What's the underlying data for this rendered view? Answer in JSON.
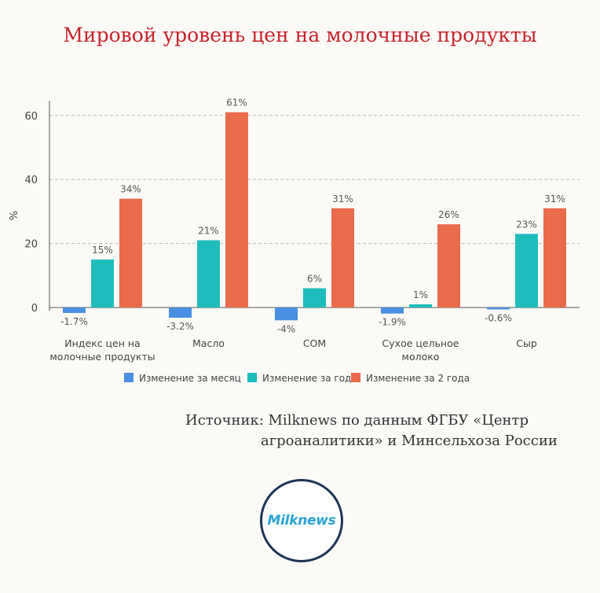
{
  "title": "Мировой уровень цен на молочные продукты",
  "source": {
    "line1": "Источник: Milknews по данным ФГБУ «Центр",
    "line2": "агроаналитики» и Минсельхоза России"
  },
  "logo_text": "Milknews",
  "chart_data": {
    "type": "bar",
    "ylabel": "%",
    "ylim": [
      -6,
      66
    ],
    "yticks": [
      0,
      20,
      40,
      60
    ],
    "grid": true,
    "legend_position": "bottom",
    "categories": [
      [
        "Индекс цен на",
        "молочные продукты"
      ],
      [
        "Масло"
      ],
      [
        "СОМ"
      ],
      [
        "Сухое цельное",
        "молоко"
      ],
      [
        "Сыр"
      ]
    ],
    "series": [
      {
        "name": "Изменение за месяц",
        "color": "#4a90e2",
        "values": [
          -1.7,
          -3.2,
          -4,
          -1.9,
          -0.6
        ],
        "labels": [
          "-1.7%",
          "-3.2%",
          "-4%",
          "-1.9%",
          "-0.6%"
        ]
      },
      {
        "name": "Изменение за год",
        "color": "#1fbcbc",
        "values": [
          15,
          21,
          6,
          1,
          23
        ],
        "labels": [
          "15%",
          "21%",
          "6%",
          "1%",
          "23%"
        ]
      },
      {
        "name": "Изменение за 2 года",
        "color": "#e96b4b",
        "values": [
          34,
          61,
          31,
          26,
          31
        ],
        "labels": [
          "34%",
          "61%",
          "31%",
          "26%",
          "31%"
        ]
      }
    ]
  }
}
